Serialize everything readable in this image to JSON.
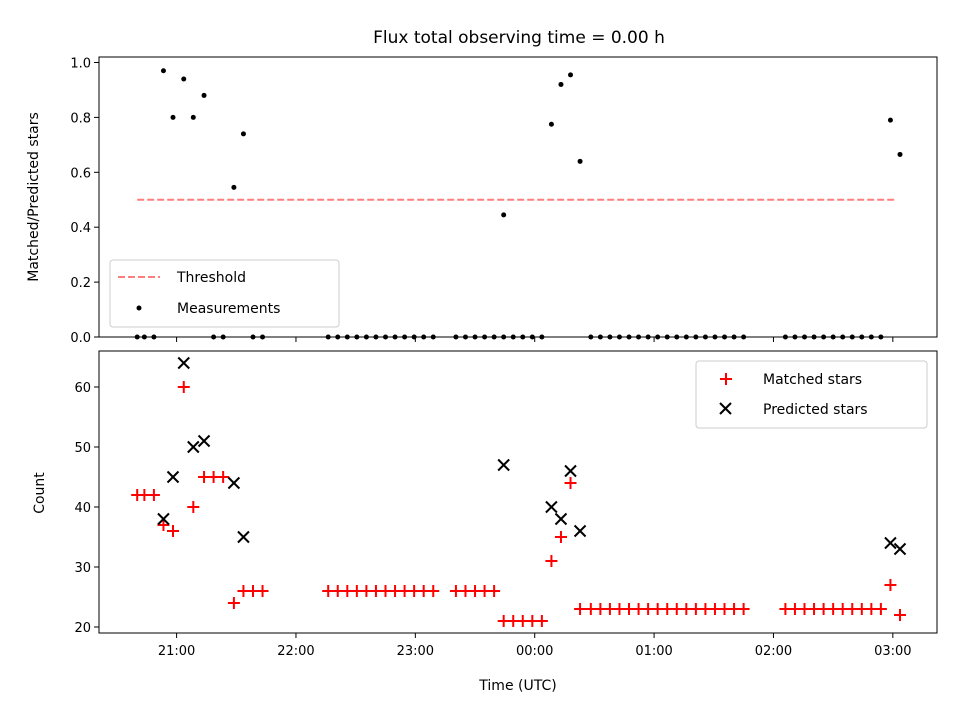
{
  "chart_data": {
    "title": "Flux total observing time = 0.00 h",
    "xlabel": "Time (UTC)",
    "x_unit": "hours",
    "x_ticks": [
      {
        "value": 21,
        "label": "21:00"
      },
      {
        "value": 22,
        "label": "22:00"
      },
      {
        "value": 23,
        "label": "23:00"
      },
      {
        "value": 24,
        "label": "00:00"
      },
      {
        "value": 25,
        "label": "01:00"
      },
      {
        "value": 26,
        "label": "02:00"
      },
      {
        "value": 27,
        "label": "03:00"
      }
    ],
    "xlim": [
      20.35,
      27.37
    ],
    "top": {
      "type": "scatter",
      "ylabel": "Matched/Predicted stars",
      "ylim": [
        0,
        1.02
      ],
      "y_ticks": [
        {
          "value": 0,
          "label": "0.0"
        },
        {
          "value": 0.2,
          "label": "0.2"
        },
        {
          "value": 0.4,
          "label": "0.4"
        },
        {
          "value": 0.6,
          "label": "0.6"
        },
        {
          "value": 0.8,
          "label": "0.8"
        },
        {
          "value": 1.0,
          "label": "1.0"
        }
      ],
      "threshold": {
        "name": "Threshold",
        "y": 0.5,
        "x_range": [
          20.67,
          27.02
        ],
        "color": "#ff7f7f"
      },
      "measurements": {
        "name": "Measurements",
        "color": "#000000",
        "points": [
          [
            20.67,
            0
          ],
          [
            20.73,
            0
          ],
          [
            20.81,
            0
          ],
          [
            20.89,
            0.97
          ],
          [
            20.97,
            0.8
          ],
          [
            21.06,
            0.94
          ],
          [
            21.14,
            0.8
          ],
          [
            21.23,
            0.88
          ],
          [
            21.31,
            0
          ],
          [
            21.39,
            0
          ],
          [
            21.48,
            0.545
          ],
          [
            21.56,
            0.74
          ],
          [
            21.64,
            0
          ],
          [
            21.72,
            0
          ],
          [
            22.27,
            0
          ],
          [
            22.35,
            0
          ],
          [
            22.43,
            0
          ],
          [
            22.51,
            0
          ],
          [
            22.59,
            0
          ],
          [
            22.67,
            0
          ],
          [
            22.75,
            0
          ],
          [
            22.83,
            0
          ],
          [
            22.91,
            0
          ],
          [
            22.99,
            0
          ],
          [
            23.07,
            0
          ],
          [
            23.15,
            0
          ],
          [
            23.34,
            0
          ],
          [
            23.42,
            0
          ],
          [
            23.5,
            0
          ],
          [
            23.58,
            0
          ],
          [
            23.66,
            0
          ],
          [
            23.74,
            0
          ],
          [
            23.82,
            0
          ],
          [
            23.9,
            0
          ],
          [
            23.98,
            0
          ],
          [
            24.06,
            0
          ],
          [
            24.14,
            0.775
          ],
          [
            24.22,
            0.92
          ],
          [
            24.3,
            0.955
          ],
          [
            24.38,
            0.64
          ],
          [
            24.47,
            0
          ],
          [
            24.55,
            0
          ],
          [
            24.63,
            0
          ],
          [
            24.71,
            0
          ],
          [
            24.79,
            0
          ],
          [
            24.87,
            0
          ],
          [
            24.95,
            0
          ],
          [
            25.03,
            0
          ],
          [
            25.11,
            0
          ],
          [
            25.19,
            0
          ],
          [
            25.27,
            0
          ],
          [
            25.35,
            0
          ],
          [
            25.43,
            0
          ],
          [
            25.51,
            0
          ],
          [
            25.59,
            0
          ],
          [
            25.67,
            0
          ],
          [
            25.75,
            0
          ],
          [
            26.1,
            0
          ],
          [
            26.18,
            0
          ],
          [
            26.26,
            0
          ],
          [
            26.34,
            0
          ],
          [
            26.42,
            0
          ],
          [
            26.5,
            0
          ],
          [
            26.58,
            0
          ],
          [
            26.66,
            0
          ],
          [
            26.74,
            0
          ],
          [
            26.82,
            0
          ],
          [
            26.9,
            0
          ],
          [
            26.98,
            0.79
          ],
          [
            27.06,
            0.665
          ]
        ],
        "extra_points": [
          [
            23.74,
            0.445
          ]
        ]
      },
      "legend_placement": "lower-left"
    },
    "bottom": {
      "type": "scatter",
      "ylabel": "Count",
      "ylim": [
        19,
        66
      ],
      "y_ticks": [
        {
          "value": 20,
          "label": "20"
        },
        {
          "value": 30,
          "label": "30"
        },
        {
          "value": 40,
          "label": "40"
        },
        {
          "value": 50,
          "label": "50"
        },
        {
          "value": 60,
          "label": "60"
        }
      ],
      "matched": {
        "name": "Matched stars",
        "color": "#ff0000",
        "points": [
          [
            20.67,
            42
          ],
          [
            20.73,
            42
          ],
          [
            20.81,
            42
          ],
          [
            20.89,
            37
          ],
          [
            20.97,
            36
          ],
          [
            21.06,
            60
          ],
          [
            21.14,
            40
          ],
          [
            21.23,
            45
          ],
          [
            21.31,
            45
          ],
          [
            21.39,
            45
          ],
          [
            21.48,
            24
          ],
          [
            21.56,
            26
          ],
          [
            21.64,
            26
          ],
          [
            21.72,
            26
          ],
          [
            22.27,
            26
          ],
          [
            22.35,
            26
          ],
          [
            22.43,
            26
          ],
          [
            22.51,
            26
          ],
          [
            22.59,
            26
          ],
          [
            22.67,
            26
          ],
          [
            22.75,
            26
          ],
          [
            22.83,
            26
          ],
          [
            22.91,
            26
          ],
          [
            22.99,
            26
          ],
          [
            23.07,
            26
          ],
          [
            23.15,
            26
          ],
          [
            23.34,
            26
          ],
          [
            23.42,
            26
          ],
          [
            23.5,
            26
          ],
          [
            23.58,
            26
          ],
          [
            23.66,
            26
          ],
          [
            23.74,
            21
          ],
          [
            23.82,
            21
          ],
          [
            23.9,
            21
          ],
          [
            23.98,
            21
          ],
          [
            24.06,
            21
          ],
          [
            24.14,
            31
          ],
          [
            24.22,
            35
          ],
          [
            24.3,
            44
          ],
          [
            24.38,
            23
          ],
          [
            24.47,
            23
          ],
          [
            24.55,
            23
          ],
          [
            24.63,
            23
          ],
          [
            24.71,
            23
          ],
          [
            24.79,
            23
          ],
          [
            24.87,
            23
          ],
          [
            24.95,
            23
          ],
          [
            25.03,
            23
          ],
          [
            25.11,
            23
          ],
          [
            25.19,
            23
          ],
          [
            25.27,
            23
          ],
          [
            25.35,
            23
          ],
          [
            25.43,
            23
          ],
          [
            25.51,
            23
          ],
          [
            25.59,
            23
          ],
          [
            25.67,
            23
          ],
          [
            25.75,
            23
          ],
          [
            26.1,
            23
          ],
          [
            26.18,
            23
          ],
          [
            26.26,
            23
          ],
          [
            26.34,
            23
          ],
          [
            26.42,
            23
          ],
          [
            26.5,
            23
          ],
          [
            26.58,
            23
          ],
          [
            26.66,
            23
          ],
          [
            26.74,
            23
          ],
          [
            26.82,
            23
          ],
          [
            26.9,
            23
          ],
          [
            26.98,
            27
          ],
          [
            27.06,
            22
          ]
        ]
      },
      "predicted": {
        "name": "Predicted stars",
        "color": "#000000",
        "points": [
          [
            20.89,
            38
          ],
          [
            20.97,
            45
          ],
          [
            21.06,
            64
          ],
          [
            21.14,
            50
          ],
          [
            21.23,
            51
          ],
          [
            21.48,
            44
          ],
          [
            21.56,
            35
          ],
          [
            23.74,
            47
          ],
          [
            24.14,
            40
          ],
          [
            24.22,
            38
          ],
          [
            24.3,
            46
          ],
          [
            24.38,
            36
          ],
          [
            26.98,
            34
          ],
          [
            27.06,
            33
          ]
        ]
      },
      "legend_placement": "upper-right"
    }
  }
}
